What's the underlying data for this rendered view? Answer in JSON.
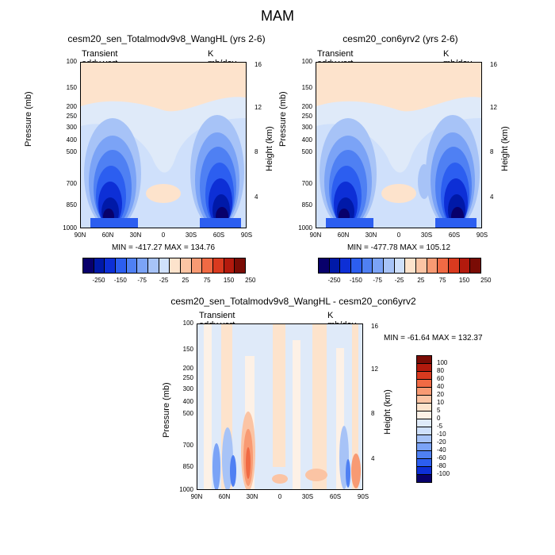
{
  "title": "MAM",
  "chart_data": [
    {
      "type": "heatmap",
      "title": "cesm20_sen_Totalmodv9v8_WangHL (yrs 2-6)",
      "subtitle_left": "Transient eddy vert heat",
      "subtitle_right": "K mb/day",
      "ylabel": "Pressure (mb)",
      "ylabel_right": "Height (km)",
      "x_ticks": [
        "90N",
        "60N",
        "30N",
        "0",
        "30S",
        "60S",
        "90S"
      ],
      "y_ticks": [
        "100",
        "150",
        "200",
        "250",
        "300",
        "400",
        "500",
        "700",
        "850",
        "1000"
      ],
      "y_ticks_right": [
        "16",
        "12",
        "8",
        "4"
      ],
      "stats": "MIN = -417.27  MAX = 134.76",
      "min": -417.27,
      "max": 134.76,
      "legend_labels": [
        "-250",
        "-150",
        "-75",
        "-25",
        "25",
        "75",
        "150",
        "250"
      ]
    },
    {
      "type": "heatmap",
      "title": "cesm20_con6yrv2 (yrs 2-6)",
      "subtitle_left": "Transient eddy vert heat",
      "subtitle_right": "K mb/day",
      "ylabel": "Pressure (mb)",
      "ylabel_right": "Height (km)",
      "x_ticks": [
        "90N",
        "60N",
        "30N",
        "0",
        "30S",
        "60S",
        "90S"
      ],
      "y_ticks": [
        "100",
        "150",
        "200",
        "250",
        "300",
        "400",
        "500",
        "700",
        "850",
        "1000"
      ],
      "y_ticks_right": [
        "16",
        "12",
        "8",
        "4"
      ],
      "stats": "MIN = -477.78  MAX = 105.12",
      "min": -477.78,
      "max": 105.12,
      "legend_labels": [
        "-250",
        "-150",
        "-75",
        "-25",
        "25",
        "75",
        "150",
        "250"
      ]
    },
    {
      "type": "heatmap",
      "title": "cesm20_sen_Totalmodv9v8_WangHL - cesm20_con6yrv2",
      "subtitle_left": "Transient eddy vert heat",
      "subtitle_right": "K mb/day",
      "ylabel": "Pressure (mb)",
      "ylabel_right": "Height (km)",
      "x_ticks": [
        "90N",
        "60N",
        "30N",
        "0",
        "30S",
        "60S",
        "90S"
      ],
      "y_ticks": [
        "100",
        "150",
        "200",
        "250",
        "300",
        "400",
        "500",
        "700",
        "850",
        "1000"
      ],
      "y_ticks_right": [
        "16",
        "12",
        "8",
        "4"
      ],
      "stats": "MIN = -61.64  MAX = 132.37",
      "min": -61.64,
      "max": 132.37,
      "legend_labels": [
        "100",
        "80",
        "60",
        "40",
        "20",
        "10",
        "5",
        "0",
        "-5",
        "-10",
        "-20",
        "-40",
        "-60",
        "-80",
        "-100"
      ]
    }
  ],
  "colors": {
    "top_levels": [
      "#08006b",
      "#0019a8",
      "#0d2fd6",
      "#2c5ef0",
      "#4f80f3",
      "#7ba3f6",
      "#a7c3f7",
      "#cfe0fb",
      "#fde3cc",
      "#fbc4a4",
      "#f89a73",
      "#f06a44",
      "#d93a1f",
      "#b31a0d",
      "#7a0c05"
    ],
    "bottom_levels": [
      "#7a0c05",
      "#b31a0d",
      "#d93a1f",
      "#f06a44",
      "#f89a73",
      "#fbc4a4",
      "#fde3cc",
      "#fdf1e6",
      "#dfeaf9",
      "#cfe0fb",
      "#a7c3f7",
      "#7ba3f6",
      "#4f80f3",
      "#2c5ef0",
      "#0d2fd6",
      "#08006b"
    ]
  }
}
